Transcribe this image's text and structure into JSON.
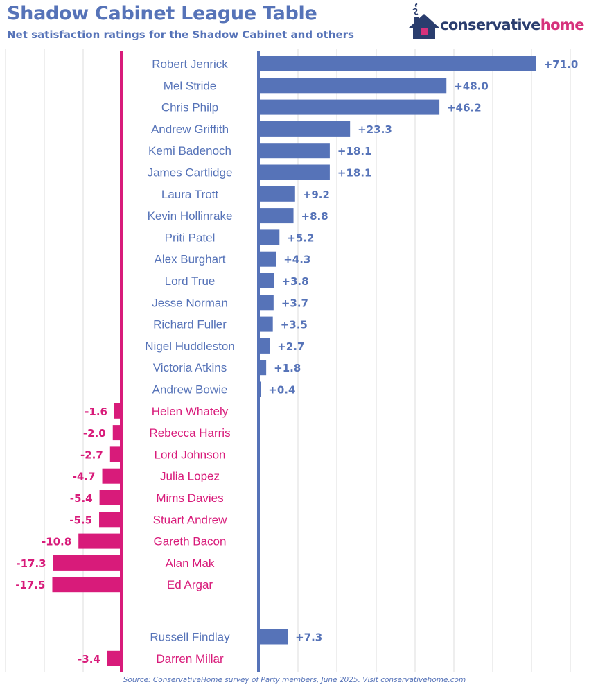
{
  "header": {
    "title": "Shadow Cabinet League Table",
    "subtitle": "Net satisfaction ratings for the Shadow Cabinet and others"
  },
  "logo": {
    "part1": "conservative",
    "part2": "home",
    "icon": "house-icon"
  },
  "source": "Source: ConservativeHome survey of Party members, June 2025. Visit conservativehome.com",
  "colors": {
    "positive": "#5673b8",
    "negative": "#d81b7a",
    "grid": "#dcdcdc",
    "logo_dark": "#2a3d6e",
    "logo_accent": "#d6327c"
  },
  "chart_data": {
    "type": "bar",
    "orientation": "horizontal",
    "grid": true,
    "categories": [
      "Robert Jenrick",
      "Mel Stride",
      "Chris Philp",
      "Andrew Griffith",
      "Kemi Badenoch",
      "James Cartlidge",
      "Laura Trott",
      "Kevin Hollinrake",
      "Priti Patel",
      "Alex Burghart",
      "Lord True",
      "Jesse Norman",
      "Richard Fuller",
      "Nigel Huddleston",
      "Victoria Atkins",
      "Andrew Bowie",
      "Helen Whately",
      "Rebecca Harris",
      "Lord Johnson",
      "Julia Lopez",
      "Mims Davies",
      "Stuart Andrew",
      "Gareth Bacon",
      "Alan Mak",
      "Ed Argar",
      "Russell Findlay",
      "Darren Millar"
    ],
    "values": [
      71.0,
      48.0,
      46.2,
      23.3,
      18.1,
      18.1,
      9.2,
      8.8,
      5.2,
      4.3,
      3.8,
      3.7,
      3.5,
      2.7,
      1.8,
      0.4,
      -1.6,
      -2.0,
      -2.7,
      -4.7,
      -5.4,
      -5.5,
      -10.8,
      -17.3,
      -17.5,
      7.3,
      -3.4
    ],
    "value_labels": [
      "+71.0",
      "+48.0",
      "+46.2",
      "+23.3",
      "+18.1",
      "+18.1",
      "+9.2",
      "+8.8",
      "+5.2",
      "+4.3",
      "+3.8",
      "+3.7",
      "+3.5",
      "+2.7",
      "+1.8",
      "+0.4",
      "-1.6",
      "-2.0",
      "-2.7",
      "-4.7",
      "-5.4",
      "-5.5",
      "-10.8",
      "-17.3",
      "-17.5",
      "+7.3",
      "-3.4"
    ]
  }
}
